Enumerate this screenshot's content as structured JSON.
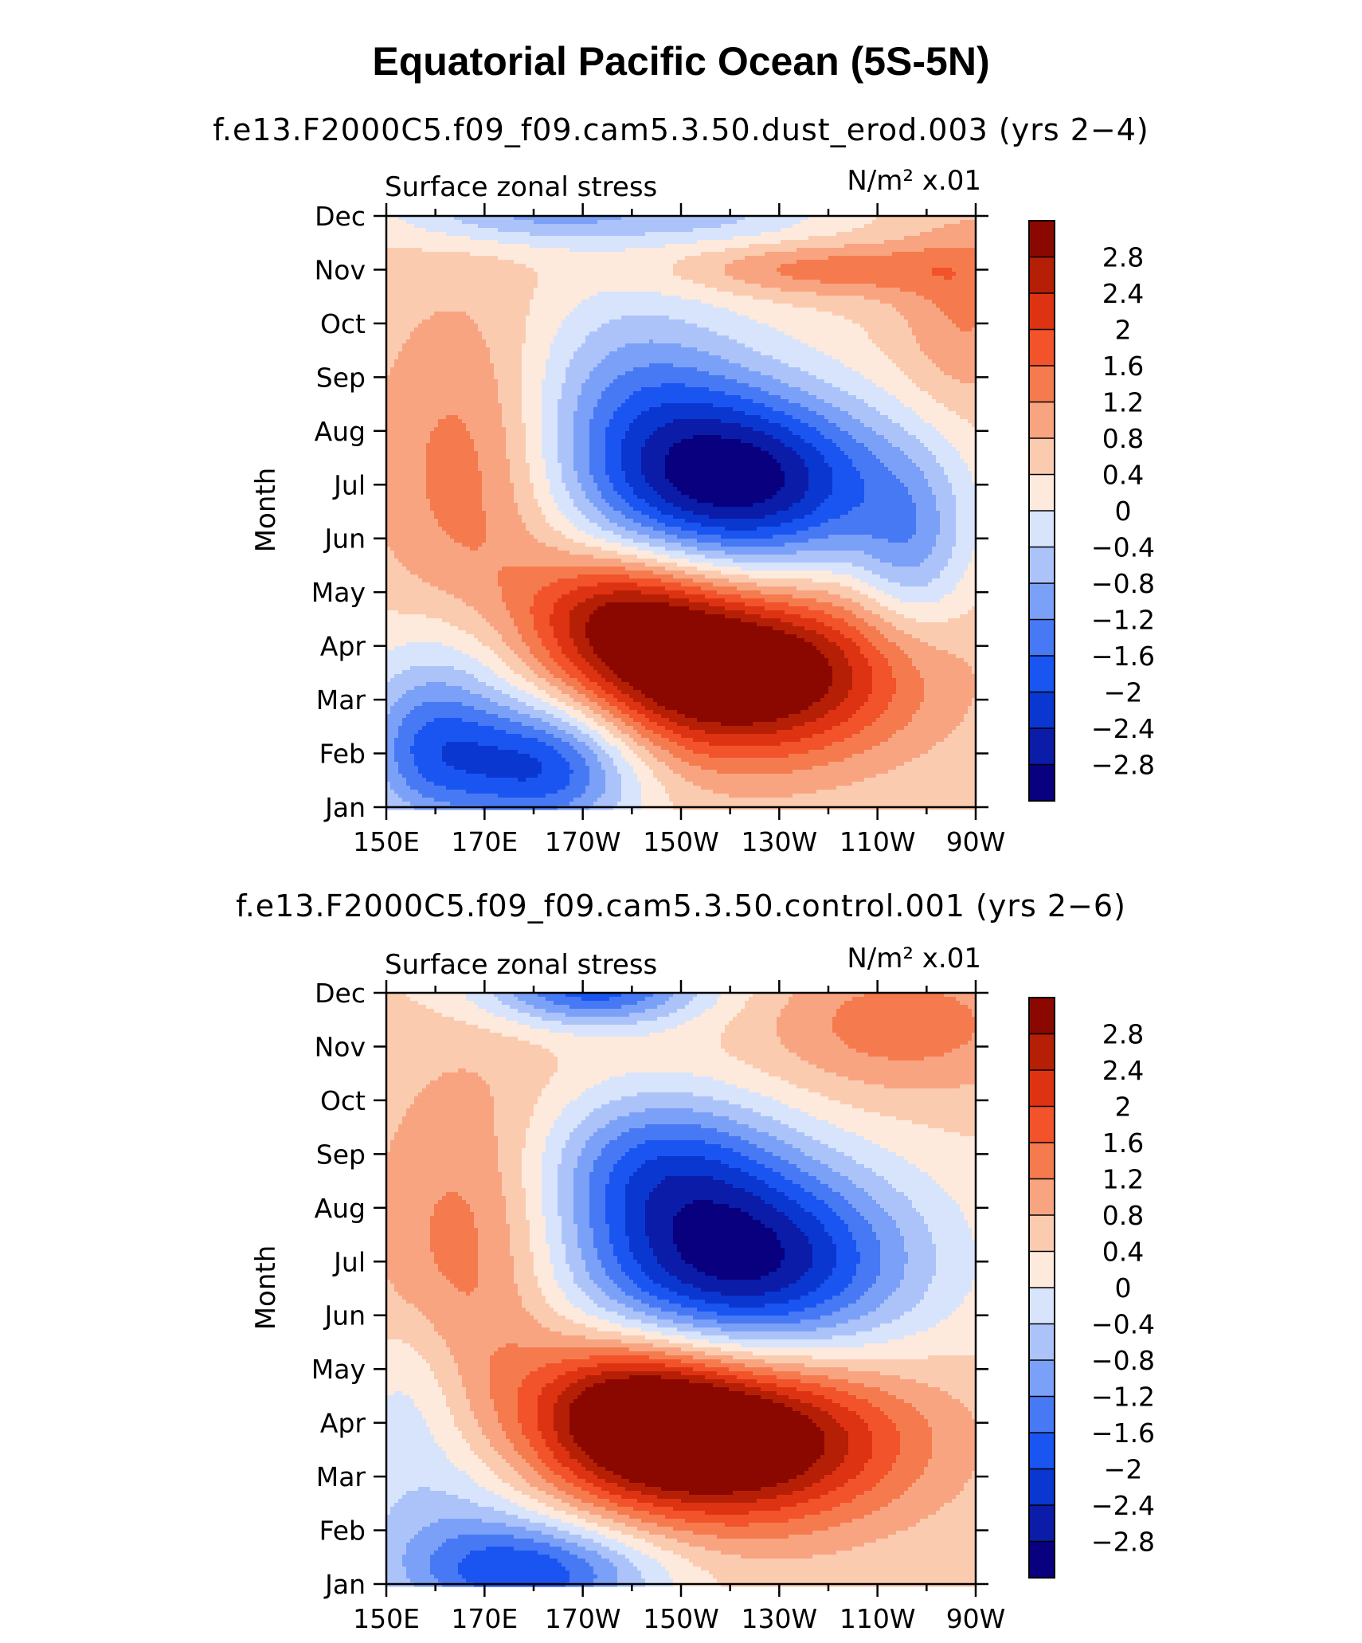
{
  "title": "Equatorial Pacific Ocean (5S-5N)",
  "palette": [
    "#08007f",
    "#0a1ca8",
    "#0b37d1",
    "#1a55f2",
    "#4779f5",
    "#7ba0f7",
    "#acc3fa",
    "#d7e4fc",
    "#fdeadd",
    "#fbcbb0",
    "#f8a481",
    "#f57b4f",
    "#f2532a",
    "#de3312",
    "#b51f05",
    "#8a0800"
  ],
  "colorbar_labels": [
    "2.8",
    "2.4",
    "2",
    "1.6",
    "1.2",
    "0.8",
    "0.4",
    "0",
    "−0.4",
    "−0.8",
    "−1.2",
    "−1.6",
    "−2",
    "−2.4",
    "−2.8"
  ],
  "chart_data": [
    {
      "type": "heatmap",
      "subtitle": "f.e13.F2000C5.f09_f09.cam5.3.50.dust_erod.003 (yrs 2−4)",
      "left_label": "Surface zonal stress",
      "right_label": "N/m² x.01",
      "ylabel": "Month",
      "x_ticks": [
        "150E",
        "170E",
        "170W",
        "150W",
        "130W",
        "110W",
        "90W"
      ],
      "y_ticks": [
        "Jan",
        "Feb",
        "Mar",
        "Apr",
        "May",
        "Jun",
        "Jul",
        "Aug",
        "Sep",
        "Oct",
        "Nov",
        "Dec"
      ],
      "x_range_lon": [
        150,
        270
      ],
      "month_range": [
        1,
        12
      ],
      "levels": [
        -2.8,
        -2.4,
        -2,
        -1.6,
        -1.2,
        -0.8,
        -0.4,
        0,
        0.4,
        0.8,
        1.2,
        1.6,
        2,
        2.4,
        2.8
      ],
      "features": [
        {
          "lon": 222,
          "month": 7.05,
          "amp": -3.4,
          "slon": 22,
          "smon": 1.2
        },
        {
          "lon": 200,
          "month": 8.8,
          "amp": -1.3,
          "slon": 18,
          "smon": 1.4
        },
        {
          "lon": 257,
          "month": 5.7,
          "amp": -1.1,
          "slon": 8,
          "smon": 1.2
        },
        {
          "lon": 220,
          "month": 3.5,
          "amp": 3.5,
          "slon": 24,
          "smon": 1.1
        },
        {
          "lon": 198,
          "month": 4.7,
          "amp": 1.6,
          "slon": 14,
          "smon": 0.8
        },
        {
          "lon": 182,
          "month": 1.8,
          "amp": -2.6,
          "slon": 14,
          "smon": 0.9
        },
        {
          "lon": 158,
          "month": 2.0,
          "amp": -1.6,
          "slon": 10,
          "smon": 1.0
        },
        {
          "lon": 165,
          "month": 3.6,
          "amp": -0.8,
          "slon": 14,
          "smon": 1.0
        },
        {
          "lon": 180,
          "month": 12.1,
          "amp": -1.4,
          "slon": 20,
          "smon": 0.45
        },
        {
          "lon": 220,
          "month": 12.0,
          "amp": -0.7,
          "slon": 16,
          "smon": 0.4
        },
        {
          "lon": 168,
          "month": 7.4,
          "amp": 1.1,
          "slon": 14,
          "smon": 2.2
        },
        {
          "lon": 240,
          "month": 11.0,
          "amp": 1.0,
          "slon": 22,
          "smon": 0.35
        },
        {
          "lon": 268,
          "month": 10.2,
          "amp": 0.8,
          "slon": 10,
          "smon": 1.3
        }
      ]
    },
    {
      "type": "heatmap",
      "subtitle": "f.e13.F2000C5.f09_f09.cam5.3.50.control.001 (yrs 2−6)",
      "left_label": "Surface zonal stress",
      "right_label": "N/m² x.01",
      "ylabel": "Month",
      "x_ticks": [
        "150E",
        "170E",
        "170W",
        "150W",
        "130W",
        "110W",
        "90W"
      ],
      "y_ticks": [
        "Jan",
        "Feb",
        "Mar",
        "Apr",
        "May",
        "Jun",
        "Jul",
        "Aug",
        "Sep",
        "Oct",
        "Nov",
        "Dec"
      ],
      "x_range_lon": [
        150,
        270
      ],
      "month_range": [
        1,
        12
      ],
      "levels": [
        -2.8,
        -2.4,
        -2,
        -1.6,
        -1.2,
        -0.8,
        -0.4,
        0,
        0.4,
        0.8,
        1.2,
        1.6,
        2,
        2.4,
        2.8
      ],
      "features": [
        {
          "lon": 222,
          "month": 7.0,
          "amp": -3.4,
          "slon": 24,
          "smon": 1.3
        },
        {
          "lon": 205,
          "month": 8.9,
          "amp": -1.6,
          "slon": 18,
          "smon": 1.0
        },
        {
          "lon": 218,
          "month": 3.7,
          "amp": 3.5,
          "slon": 25,
          "smon": 1.1
        },
        {
          "lon": 200,
          "month": 4.4,
          "amp": 1.5,
          "slon": 14,
          "smon": 0.9
        },
        {
          "lon": 180,
          "month": 1.2,
          "amp": -2.2,
          "slon": 18,
          "smon": 0.7
        },
        {
          "lon": 162,
          "month": 2.6,
          "amp": -1.0,
          "slon": 16,
          "smon": 1.3
        },
        {
          "lon": 155,
          "month": 4.8,
          "amp": -0.6,
          "slon": 8,
          "smon": 1.0
        },
        {
          "lon": 192,
          "month": 12.1,
          "amp": -2.3,
          "slon": 16,
          "smon": 0.5
        },
        {
          "lon": 168,
          "month": 7.3,
          "amp": 1.1,
          "slon": 14,
          "smon": 2.3
        },
        {
          "lon": 255,
          "month": 11.4,
          "amp": 1.0,
          "slon": 20,
          "smon": 0.9
        }
      ]
    }
  ]
}
